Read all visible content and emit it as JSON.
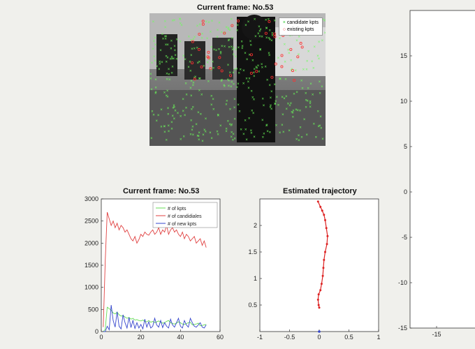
{
  "image_panel": {
    "title": "Current frame: No.53",
    "legend": [
      {
        "label": "candidate kpts",
        "marker": "x",
        "color": "#7CFF6B"
      },
      {
        "label": "existing kpts",
        "marker": "o",
        "color": "#ff3030"
      }
    ]
  },
  "chart_data": [
    {
      "type": "line",
      "title": "Current frame: No.53",
      "xlim": [
        0,
        60
      ],
      "ylim": [
        0,
        3000
      ],
      "xticks": [
        0,
        20,
        40,
        60
      ],
      "yticks": [
        0,
        500,
        1000,
        1500,
        2000,
        2500,
        3000
      ],
      "legend_position": "top-right",
      "series": [
        {
          "name": "# of kpts",
          "color": "#66dd55",
          "x": [
            1,
            2,
            3,
            4,
            5,
            6,
            7,
            8,
            9,
            10,
            11,
            12,
            13,
            14,
            15,
            16,
            17,
            18,
            19,
            20,
            21,
            22,
            23,
            24,
            25,
            26,
            27,
            28,
            29,
            30,
            31,
            32,
            33,
            34,
            35,
            36,
            37,
            38,
            39,
            40,
            41,
            42,
            43,
            44,
            45,
            46,
            47,
            48,
            49,
            50,
            51,
            52,
            53
          ],
          "values": [
            0,
            50,
            550,
            520,
            480,
            420,
            400,
            440,
            380,
            350,
            360,
            330,
            300,
            320,
            280,
            300,
            260,
            270,
            250,
            240,
            260,
            230,
            220,
            250,
            210,
            230,
            200,
            220,
            240,
            210,
            190,
            200,
            230,
            250,
            200,
            180,
            170,
            190,
            220,
            200,
            170,
            160,
            180,
            200,
            210,
            150,
            160,
            170,
            190,
            130,
            140,
            150,
            160
          ]
        },
        {
          "name": "# of candidiales",
          "color": "#e04040",
          "x": [
            1,
            2,
            3,
            4,
            5,
            6,
            7,
            8,
            9,
            10,
            11,
            12,
            13,
            14,
            15,
            16,
            17,
            18,
            19,
            20,
            21,
            22,
            23,
            24,
            25,
            26,
            27,
            28,
            29,
            30,
            31,
            32,
            33,
            34,
            35,
            36,
            37,
            38,
            39,
            40,
            41,
            42,
            43,
            44,
            45,
            46,
            47,
            48,
            49,
            50,
            51,
            52,
            53
          ],
          "values": [
            100,
            1600,
            2700,
            2550,
            2400,
            2500,
            2350,
            2450,
            2300,
            2400,
            2350,
            2250,
            2300,
            2200,
            2100,
            2050,
            2150,
            2000,
            2080,
            2200,
            2150,
            2250,
            2200,
            2180,
            2250,
            2300,
            2200,
            2250,
            2350,
            2200,
            2300,
            2250,
            2400,
            2200,
            2300,
            2350,
            2250,
            2300,
            2200,
            2150,
            2250,
            2100,
            2200,
            2150,
            2050,
            2100,
            2150,
            2000,
            2050,
            2100,
            1950,
            2050,
            1900
          ]
        },
        {
          "name": "# of new kpts",
          "color": "#3344cc",
          "x": [
            1,
            2,
            3,
            4,
            5,
            6,
            7,
            8,
            9,
            10,
            11,
            12,
            13,
            14,
            15,
            16,
            17,
            18,
            19,
            20,
            21,
            22,
            23,
            24,
            25,
            26,
            27,
            28,
            29,
            30,
            31,
            32,
            33,
            34,
            35,
            36,
            37,
            38,
            39,
            40,
            41,
            42,
            43,
            44,
            45,
            46,
            47,
            48,
            49,
            50,
            51,
            52,
            53
          ],
          "values": [
            0,
            0,
            120,
            40,
            600,
            250,
            100,
            450,
            120,
            60,
            380,
            200,
            80,
            320,
            90,
            250,
            70,
            200,
            80,
            160,
            60,
            280,
            100,
            220,
            80,
            120,
            300,
            150,
            100,
            250,
            90,
            200,
            120,
            80,
            280,
            150,
            100,
            200,
            300,
            120,
            80,
            250,
            150,
            100,
            300,
            200,
            120,
            100,
            150,
            200,
            100,
            80,
            150
          ]
        }
      ]
    },
    {
      "type": "line",
      "title": "Estimated trajectory",
      "xlim": [
        -1,
        1
      ],
      "ylim": [
        0,
        2.5
      ],
      "xticks": [
        -1,
        -0.5,
        0,
        0.5,
        1
      ],
      "xtick_labels": [
        "-1",
        "-0.5",
        "0",
        "0.5",
        "1"
      ],
      "yticks": [
        0.5,
        1,
        1.5,
        2
      ],
      "series": [
        {
          "color": "#dd2222",
          "x": [
            -0.02,
            0.02,
            0.05,
            0.08,
            0.1,
            0.12,
            0.14,
            0.13,
            0.1,
            0.08,
            0.07,
            0.06,
            0.04,
            0.02,
            -0.01,
            -0.02,
            -0.01,
            0.0
          ],
          "values": [
            2.45,
            2.35,
            2.28,
            2.2,
            2.1,
            1.95,
            1.8,
            1.65,
            1.5,
            1.35,
            1.2,
            1.05,
            0.9,
            0.78,
            0.7,
            0.6,
            0.5,
            0.45
          ]
        }
      ]
    },
    {
      "type": "scatter",
      "title": "",
      "ylim": [
        -15,
        20
      ],
      "yticks": [
        -15,
        -10,
        -5,
        0,
        5,
        10,
        15
      ],
      "xticks": [
        -15
      ],
      "series": []
    }
  ]
}
